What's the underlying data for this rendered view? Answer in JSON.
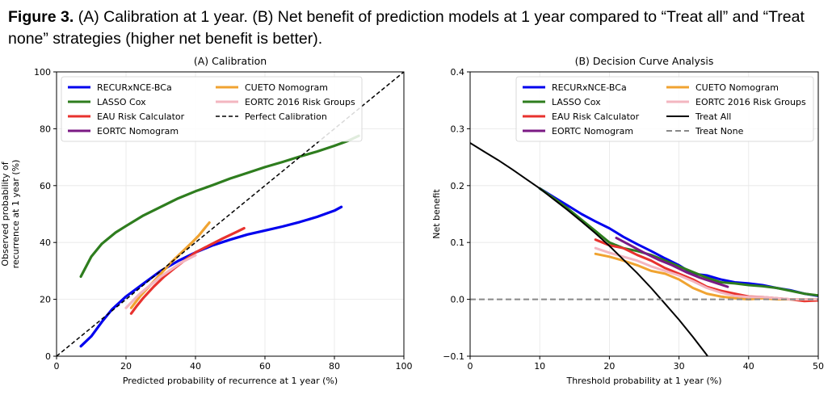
{
  "caption": {
    "label": "Figure 3.",
    "text": " (A) Calibration at 1 year. (B) Net benefit of prediction models at 1 year compared to “Treat all” and “Treat none” strategies (higher net benefit is better)."
  },
  "chart_data": [
    {
      "type": "line",
      "title": "(A) Calibration",
      "xlabel": "Predicted probability of recurrence at 1 year (%)",
      "ylabel_lines": [
        "Observed probability of",
        "recurrence at 1 year (%)"
      ],
      "xlim": [
        0,
        100
      ],
      "ylim": [
        0,
        100
      ],
      "xticks": [
        0,
        20,
        40,
        60,
        80,
        100
      ],
      "yticks": [
        0,
        20,
        40,
        60,
        80,
        100
      ],
      "grid": true,
      "legend": "top-left",
      "legend_columns": 2,
      "series": [
        {
          "name": "RECURxNCE-BCa",
          "color": "#0000ee",
          "width": 3.2,
          "points": [
            [
              7,
              3.5
            ],
            [
              10,
              7
            ],
            [
              13,
              12
            ],
            [
              16,
              16.5
            ],
            [
              20,
              21
            ],
            [
              25,
              25.5
            ],
            [
              30,
              30
            ],
            [
              35,
              33.5
            ],
            [
              40,
              36.5
            ],
            [
              45,
              39
            ],
            [
              50,
              41
            ],
            [
              55,
              42.8
            ],
            [
              60,
              44.2
            ],
            [
              65,
              45.6
            ],
            [
              70,
              47.2
            ],
            [
              75,
              49
            ],
            [
              80,
              51.2
            ],
            [
              82,
              52.5
            ]
          ]
        },
        {
          "name": "LASSO Cox",
          "color": "#2e7d1e",
          "width": 3.2,
          "points": [
            [
              7,
              28
            ],
            [
              10,
              35
            ],
            [
              13,
              39.5
            ],
            [
              17,
              43.5
            ],
            [
              20,
              45.8
            ],
            [
              25,
              49.5
            ],
            [
              30,
              52.5
            ],
            [
              35,
              55.5
            ],
            [
              40,
              58
            ],
            [
              45,
              60.2
            ],
            [
              50,
              62.5
            ],
            [
              55,
              64.5
            ],
            [
              60,
              66.5
            ],
            [
              65,
              68.3
            ],
            [
              70,
              70.2
            ],
            [
              75,
              72
            ],
            [
              80,
              74
            ],
            [
              84,
              75.8
            ],
            [
              87,
              77.5
            ]
          ]
        },
        {
          "name": "EAU Risk Calculator",
          "color": "#e8322e",
          "width": 3.2,
          "points": [
            [
              21.5,
              15
            ],
            [
              23,
              17.5
            ],
            [
              25,
              20.5
            ],
            [
              28,
              24.5
            ],
            [
              31,
              28
            ],
            [
              34,
              31
            ],
            [
              37,
              33.8
            ],
            [
              40,
              36.5
            ],
            [
              44,
              39
            ],
            [
              48,
              41.5
            ],
            [
              52,
              43.8
            ],
            [
              54,
              45
            ]
          ]
        },
        {
          "name": "EORTC Nomogram",
          "color": "#7b1a84",
          "width": 3.2,
          "points": []
        },
        {
          "name": "CUETO Nomogram",
          "color": "#f0a331",
          "width": 3.2,
          "points": [
            [
              21.5,
              17
            ],
            [
              24,
              21
            ],
            [
              27,
              25
            ],
            [
              30,
              29
            ],
            [
              33,
              33
            ],
            [
              36,
              36.5
            ],
            [
              39,
              40
            ],
            [
              41,
              42.5
            ],
            [
              43,
              45.5
            ],
            [
              44,
              47
            ]
          ]
        },
        {
          "name": "EORTC 2016 Risk Groups",
          "color": "#f3b6c0",
          "width": 3.2,
          "points": [
            [
              20,
              17
            ],
            [
              22,
              19.5
            ],
            [
              24,
              22
            ],
            [
              26,
              24
            ],
            [
              28,
              26
            ],
            [
              30,
              28
            ],
            [
              33,
              30.5
            ],
            [
              36,
              33
            ],
            [
              40,
              35.5
            ]
          ]
        },
        {
          "name": "Perfect Calibration",
          "color": "#000000",
          "width": 1.5,
          "dash": "5,3",
          "points": [
            [
              0,
              0
            ],
            [
              100,
              100
            ]
          ]
        }
      ]
    },
    {
      "type": "line",
      "title": "(B) Decision Curve Analysis",
      "xlabel": "Threshold probability at 1 year (%)",
      "ylabel": "Net benefit",
      "xlim": [
        0,
        50
      ],
      "ylim": [
        -0.1,
        0.4
      ],
      "xticks": [
        0,
        10,
        20,
        30,
        40,
        50
      ],
      "yticks": [
        -0.1,
        0.0,
        0.1,
        0.2,
        0.3,
        0.4
      ],
      "ytick_labels": [
        "−0.1",
        "0.0",
        "0.1",
        "0.2",
        "0.3",
        "0.4"
      ],
      "grid": true,
      "legend": "top-right",
      "legend_columns": 2,
      "series": [
        {
          "name": "RECURxNCE-BCa",
          "color": "#0000ee",
          "width": 3,
          "points": [
            [
              10,
              0.195
            ],
            [
              12,
              0.18
            ],
            [
              14,
              0.165
            ],
            [
              16,
              0.15
            ],
            [
              18,
              0.137
            ],
            [
              20,
              0.125
            ],
            [
              22,
              0.11
            ],
            [
              24,
              0.097
            ],
            [
              26,
              0.085
            ],
            [
              28,
              0.072
            ],
            [
              30,
              0.06
            ],
            [
              32,
              0.045
            ],
            [
              34,
              0.042
            ],
            [
              36,
              0.035
            ],
            [
              38,
              0.03
            ],
            [
              40,
              0.028
            ],
            [
              42,
              0.025
            ],
            [
              44,
              0.02
            ],
            [
              46,
              0.016
            ],
            [
              48,
              0.01
            ],
            [
              50,
              0.006
            ]
          ]
        },
        {
          "name": "LASSO Cox",
          "color": "#2e7d1e",
          "width": 3,
          "points": [
            [
              10,
              0.195
            ],
            [
              12,
              0.178
            ],
            [
              14,
              0.16
            ],
            [
              16,
              0.14
            ],
            [
              18,
              0.12
            ],
            [
              20,
              0.1
            ],
            [
              22,
              0.09
            ],
            [
              24,
              0.085
            ],
            [
              26,
              0.078
            ],
            [
              28,
              0.068
            ],
            [
              30,
              0.058
            ],
            [
              32,
              0.048
            ],
            [
              34,
              0.038
            ],
            [
              36,
              0.03
            ],
            [
              38,
              0.028
            ],
            [
              40,
              0.025
            ],
            [
              42,
              0.023
            ],
            [
              44,
              0.02
            ],
            [
              46,
              0.015
            ],
            [
              48,
              0.01
            ],
            [
              50,
              0.007
            ]
          ]
        },
        {
          "name": "EAU Risk Calculator",
          "color": "#e8322e",
          "width": 3,
          "points": [
            [
              18,
              0.105
            ],
            [
              20,
              0.095
            ],
            [
              22,
              0.09
            ],
            [
              24,
              0.078
            ],
            [
              26,
              0.068
            ],
            [
              28,
              0.055
            ],
            [
              30,
              0.045
            ],
            [
              32,
              0.035
            ],
            [
              34,
              0.022
            ],
            [
              36,
              0.015
            ],
            [
              38,
              0.01
            ],
            [
              40,
              0.005
            ],
            [
              42,
              0.004
            ],
            [
              44,
              0.002
            ],
            [
              46,
              0.0
            ],
            [
              48,
              -0.003
            ],
            [
              50,
              -0.002
            ]
          ]
        },
        {
          "name": "EORTC Nomogram",
          "color": "#7b1a84",
          "width": 3,
          "points": [
            [
              21,
              0.108
            ],
            [
              23,
              0.095
            ],
            [
              25,
              0.082
            ],
            [
              27,
              0.07
            ],
            [
              29,
              0.06
            ],
            [
              31,
              0.048
            ],
            [
              33,
              0.038
            ],
            [
              35,
              0.03
            ],
            [
              37,
              0.022
            ]
          ]
        },
        {
          "name": "CUETO Nomogram",
          "color": "#f0a331",
          "width": 3,
          "points": [
            [
              18,
              0.08
            ],
            [
              20,
              0.075
            ],
            [
              22,
              0.068
            ],
            [
              24,
              0.06
            ],
            [
              26,
              0.05
            ],
            [
              28,
              0.045
            ],
            [
              30,
              0.035
            ],
            [
              32,
              0.02
            ],
            [
              34,
              0.01
            ],
            [
              36,
              0.005
            ],
            [
              38,
              0.002
            ],
            [
              40,
              0.0
            ],
            [
              42,
              0.002
            ],
            [
              44,
              0.0
            ],
            [
              46,
              0.0
            ],
            [
              48,
              0.0
            ],
            [
              50,
              0.0
            ]
          ]
        },
        {
          "name": "EORTC 2016 Risk Groups",
          "color": "#f3b6c0",
          "width": 3,
          "points": [
            [
              18,
              0.09
            ],
            [
              20,
              0.082
            ],
            [
              22,
              0.075
            ],
            [
              24,
              0.068
            ],
            [
              26,
              0.058
            ],
            [
              28,
              0.05
            ],
            [
              30,
              0.042
            ],
            [
              32,
              0.032
            ],
            [
              34,
              0.02
            ],
            [
              36,
              0.012
            ],
            [
              38,
              0.006
            ],
            [
              40,
              0.004
            ],
            [
              42,
              0.004
            ],
            [
              44,
              0.002
            ],
            [
              46,
              0.0
            ],
            [
              48,
              0.0
            ],
            [
              50,
              0.0
            ]
          ]
        },
        {
          "name": "Treat All",
          "color": "#000000",
          "width": 2,
          "points": [
            [
              0,
              0.275
            ],
            [
              2,
              0.26
            ],
            [
              4,
              0.245
            ],
            [
              6,
              0.229
            ],
            [
              8,
              0.212
            ],
            [
              10,
              0.195
            ],
            [
              12,
              0.176
            ],
            [
              14,
              0.157
            ],
            [
              16,
              0.137
            ],
            [
              18,
              0.116
            ],
            [
              20,
              0.094
            ],
            [
              22,
              0.07
            ],
            [
              24,
              0.046
            ],
            [
              26,
              0.02
            ],
            [
              28,
              -0.008
            ],
            [
              30,
              -0.036
            ],
            [
              32,
              -0.066
            ],
            [
              34,
              -0.098
            ],
            [
              34.1,
              -0.1
            ]
          ]
        },
        {
          "name": "Treat None",
          "color": "#888888",
          "width": 2,
          "dash": "7,4",
          "points": [
            [
              0,
              0
            ],
            [
              50,
              0
            ]
          ]
        }
      ]
    }
  ]
}
